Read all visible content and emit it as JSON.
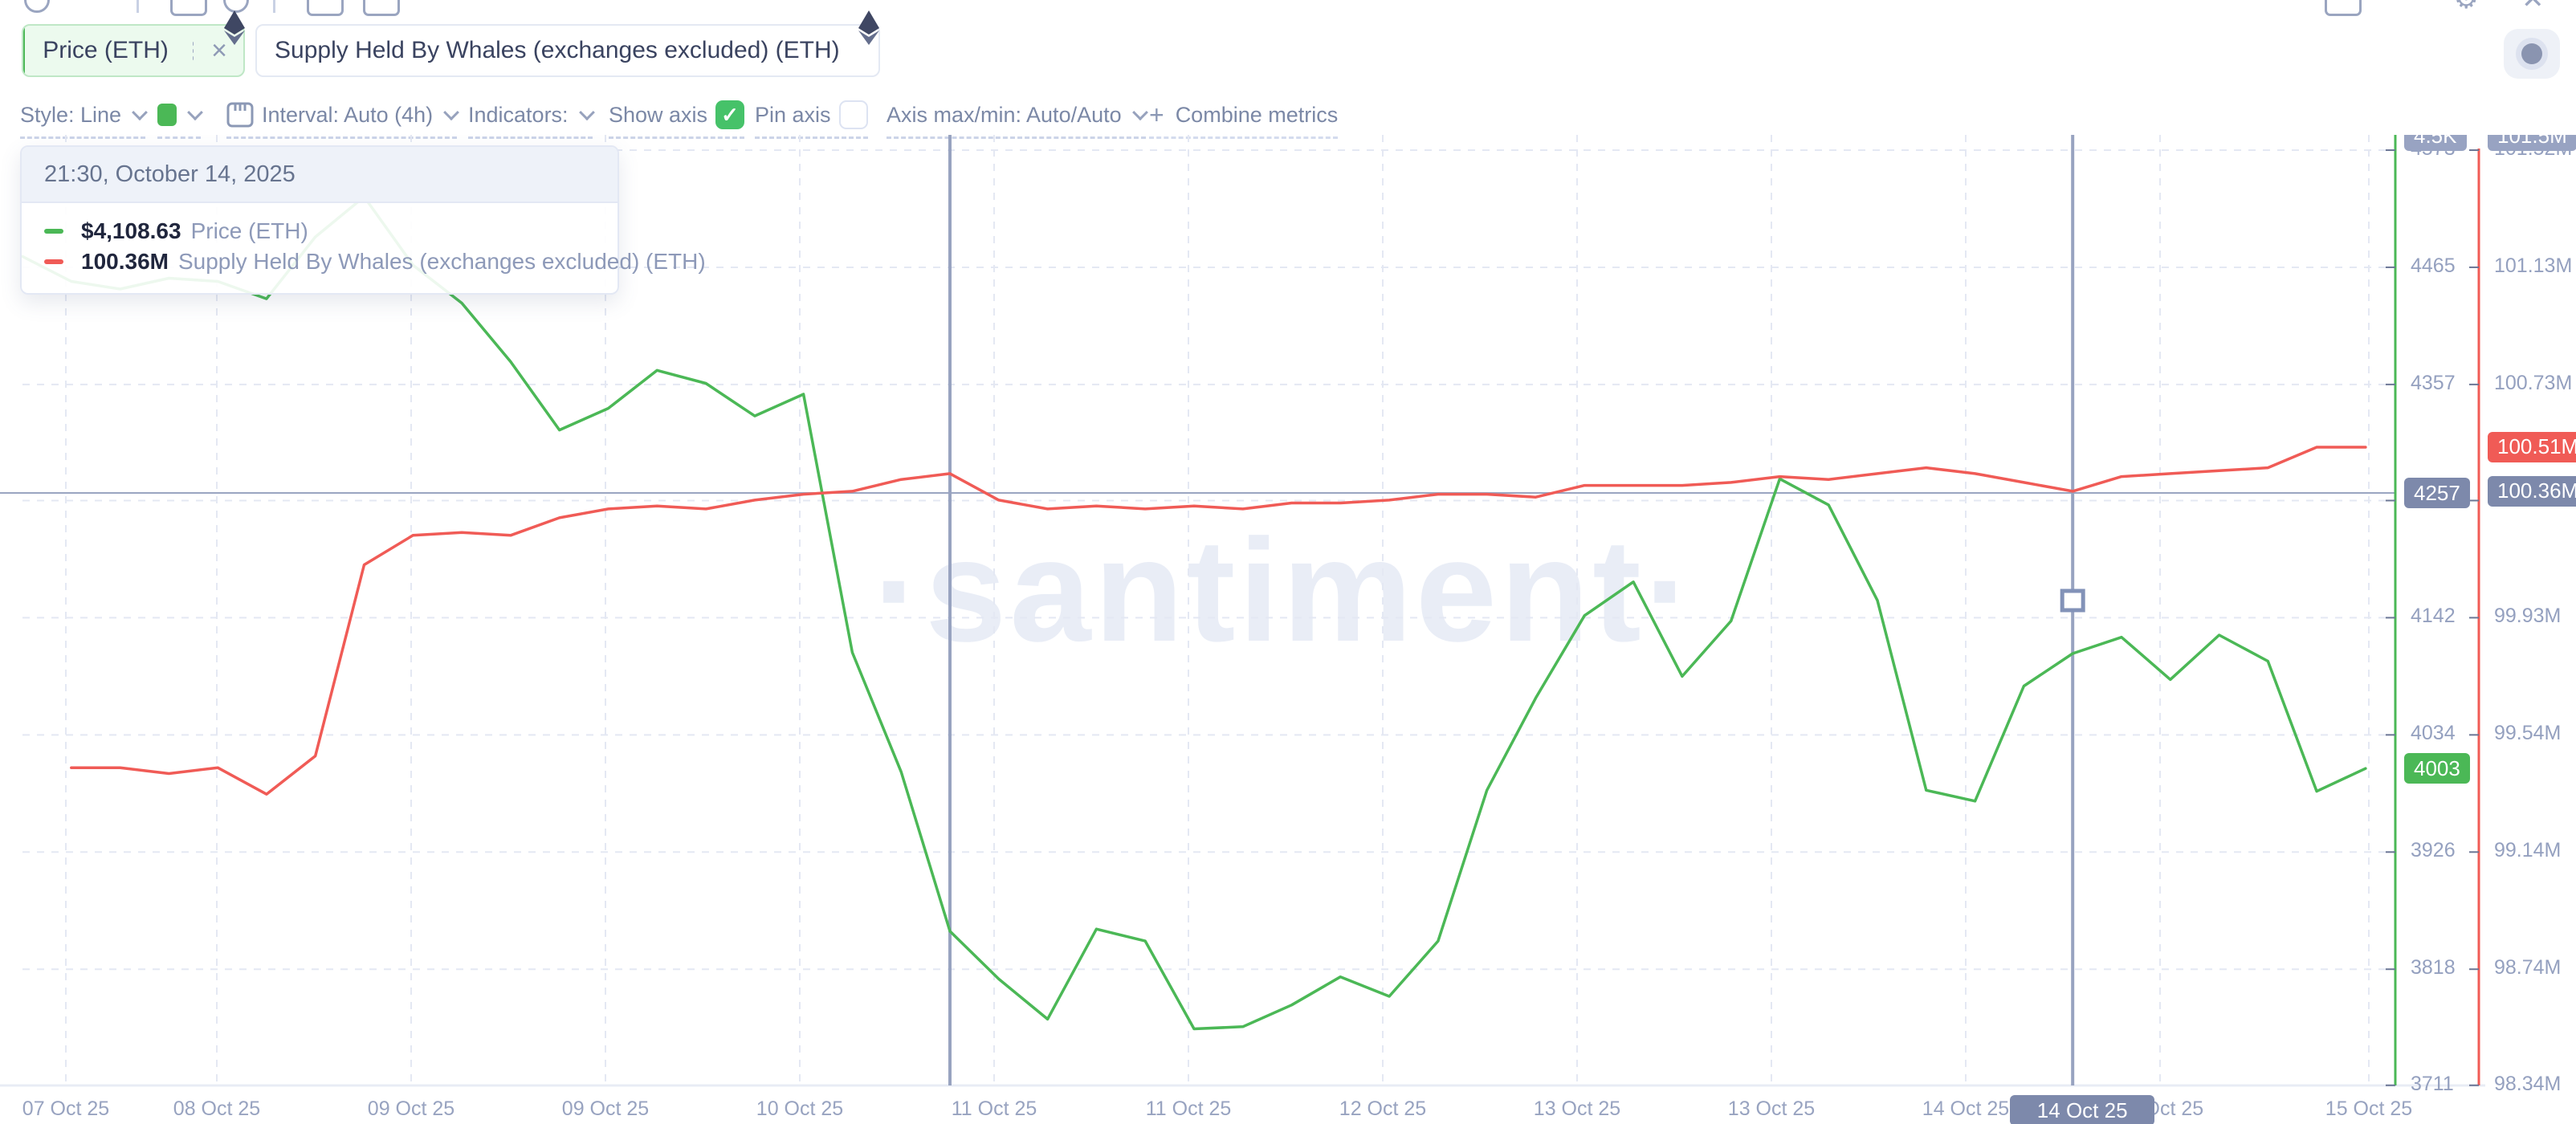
{
  "app": {
    "watermark": "·santiment·"
  },
  "colors": {
    "green": "#4bb856",
    "red": "#f05b56",
    "slate": "#7d89ab",
    "grid": "#e4e8f3"
  },
  "tabs": [
    {
      "label": "Price (ETH)"
    },
    {
      "label": "Supply Held By Whales (exchanges excluded) (ETH)"
    }
  ],
  "toolbar": {
    "style": "Style: Line",
    "interval": "Interval: Auto (4h)",
    "indicators": "Indicators:",
    "show_axis": "Show axis",
    "show_axis_checked": "✓",
    "pin_axis": "Pin axis",
    "axis_maxmin": "Axis max/min: Auto/Auto",
    "combine_plus": "+",
    "combine_metrics": "Combine metrics"
  },
  "tooltip": {
    "datetime": "21:30, October 14, 2025",
    "rows": [
      {
        "value": "$4,108.63",
        "label": "Price (ETH)",
        "color": "#4bb856"
      },
      {
        "value": "100.36M",
        "label": "Supply Held By Whales (exchanges excluded) (ETH)",
        "color": "#f05b56"
      }
    ]
  },
  "crosshair": {
    "date_badge": "14 Oct 25",
    "price_badge": "4257",
    "supply_badge": "100.36M",
    "price_value": 4257,
    "supply_value": 100.36
  },
  "axis_badges": {
    "price_top": "4.5K",
    "supply_top": "101.5M",
    "price_last": "4003",
    "supply_last": "100.51M",
    "price_last_value": 4003,
    "supply_last_value": 100.51
  },
  "chart_data": {
    "type": "line",
    "title": "",
    "grid": true,
    "legend_position": "tooltip top-left",
    "x_tick_labels": [
      "07 Oct 25",
      "08 Oct 25",
      "09 Oct 25",
      "09 Oct 25",
      "10 Oct 25",
      "11 Oct 25",
      "11 Oct 25",
      "12 Oct 25",
      "13 Oct 25",
      "13 Oct 25",
      "14 Oct 25",
      "15 Oct 25",
      "15 Oct 25"
    ],
    "price_axis": {
      "ticks": [
        4573,
        4465,
        4357,
        4250,
        4142,
        4034,
        3926,
        3818,
        3711
      ],
      "max": 4573,
      "min": 3711
    },
    "supply_axis": {
      "tick_labels": [
        "101.52M",
        "101.13M",
        "100.73M",
        "100.33M",
        "99.93M",
        "99.54M",
        "99.14M",
        "98.74M",
        "98.34M"
      ],
      "max": 101.52,
      "min": 98.34
    },
    "series": [
      {
        "name": "Price (ETH)",
        "color": "#4bb856",
        "axis": "price",
        "start_index": 0,
        "values": [
          4475,
          4452,
          4445,
          4455,
          4452,
          4436,
          4493,
          4530,
          4467,
          4432,
          4378,
          4315,
          4335,
          4370,
          4358,
          4328,
          4348,
          4110,
          4000,
          3853,
          3809,
          3772,
          3855,
          3844,
          3763,
          3765,
          3785,
          3811,
          3793,
          3844,
          3983,
          4068,
          4144,
          4175,
          4088,
          4139,
          4270,
          4246,
          4158,
          3983,
          3973,
          4079,
          4109,
          4124,
          4085,
          4126,
          4102,
          3982,
          4003
        ]
      },
      {
        "name": "Supply Held By Whales (exchanges excluded) (ETH)",
        "color": "#f05b56",
        "axis": "supply",
        "start_index": 1,
        "values": [
          99.42,
          99.42,
          99.4,
          99.42,
          99.33,
          99.46,
          100.11,
          100.21,
          100.22,
          100.21,
          100.27,
          100.3,
          100.31,
          100.3,
          100.33,
          100.35,
          100.36,
          100.4,
          100.42,
          100.33,
          100.3,
          100.31,
          100.3,
          100.31,
          100.3,
          100.32,
          100.32,
          100.33,
          100.35,
          100.35,
          100.34,
          100.38,
          100.38,
          100.38,
          100.39,
          100.41,
          100.4,
          100.42,
          100.44,
          100.42,
          100.39,
          100.36,
          100.41,
          100.42,
          100.43,
          100.44,
          100.51,
          100.51
        ]
      }
    ],
    "markers": {
      "left_marker_index": 19,
      "crosshair_index": 42
    }
  }
}
